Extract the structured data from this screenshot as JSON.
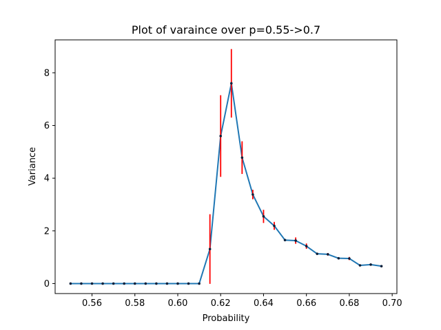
{
  "chart_data": {
    "type": "line",
    "title": "Plot of varaince over p=0.55->0.7",
    "xlabel": "Probability",
    "ylabel": "Variance",
    "xlim": [
      0.5428,
      0.7022
    ],
    "ylim": [
      -0.38,
      9.25
    ],
    "xticks": [
      0.56,
      0.58,
      0.6,
      0.62,
      0.64,
      0.66,
      0.68,
      0.7
    ],
    "xtick_labels": [
      "0.56",
      "0.58",
      "0.60",
      "0.62",
      "0.64",
      "0.66",
      "0.68",
      "0.70"
    ],
    "yticks": [
      0,
      2,
      4,
      6,
      8
    ],
    "ytick_labels": [
      "0",
      "2",
      "4",
      "6",
      "8"
    ],
    "grid": false,
    "series": [
      {
        "color": "#1f77b4",
        "error_color": "#ff0000",
        "x": [
          0.55,
          0.555,
          0.56,
          0.565,
          0.57,
          0.575,
          0.58,
          0.585,
          0.59,
          0.595,
          0.6,
          0.605,
          0.61,
          0.615,
          0.62,
          0.625,
          0.63,
          0.635,
          0.64,
          0.645,
          0.65,
          0.655,
          0.66,
          0.665,
          0.67,
          0.675,
          0.68,
          0.685,
          0.69,
          0.695
        ],
        "y": [
          0,
          0,
          0,
          0,
          0,
          0,
          0,
          0,
          0,
          0,
          0,
          0,
          0,
          1.31,
          5.6,
          7.6,
          4.78,
          3.38,
          2.55,
          2.19,
          1.65,
          1.63,
          1.42,
          1.13,
          1.11,
          0.96,
          0.95,
          0.69,
          0.72,
          0.66
        ],
        "yerr": [
          0,
          0,
          0,
          0,
          0,
          0,
          0,
          0,
          0,
          0,
          0,
          0,
          0,
          1.32,
          1.55,
          1.3,
          0.62,
          0.18,
          0.25,
          0.15,
          0.03,
          0.12,
          0.1,
          0.04,
          0.05,
          0.04,
          0.06,
          0.04,
          0.03,
          0.04
        ]
      }
    ]
  }
}
